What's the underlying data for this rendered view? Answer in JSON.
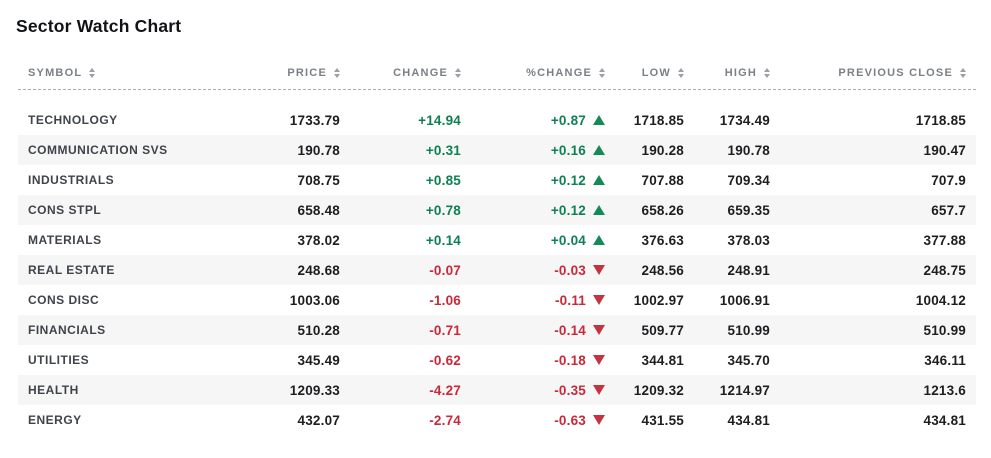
{
  "title": "Sector Watch Chart",
  "colors": {
    "positive_text": "#0e8054",
    "positive_triangle": "#148a58",
    "negative_text": "#c8293a",
    "negative_triangle": "#c43440",
    "header_text": "#7c8085",
    "alt_row_bg": "#f6f6f7",
    "number_text": "#1d1e20",
    "symbol_text": "#3f444b"
  },
  "table": {
    "columns": [
      "SYMBOL",
      "PRICE",
      "CHANGE",
      "%CHANGE",
      "LOW",
      "HIGH",
      "PREVIOUS CLOSE"
    ],
    "rows": [
      {
        "symbol": "TECHNOLOGY",
        "price": "1733.79",
        "change": "+14.94",
        "pct_change": "+0.87",
        "direction": "up",
        "low": "1718.85",
        "high": "1734.49",
        "previous_close": "1718.85"
      },
      {
        "symbol": "COMMUNICATION SVS",
        "price": "190.78",
        "change": "+0.31",
        "pct_change": "+0.16",
        "direction": "up",
        "low": "190.28",
        "high": "190.78",
        "previous_close": "190.47"
      },
      {
        "symbol": "INDUSTRIALS",
        "price": "708.75",
        "change": "+0.85",
        "pct_change": "+0.12",
        "direction": "up",
        "low": "707.88",
        "high": "709.34",
        "previous_close": "707.9"
      },
      {
        "symbol": "CONS STPL",
        "price": "658.48",
        "change": "+0.78",
        "pct_change": "+0.12",
        "direction": "up",
        "low": "658.26",
        "high": "659.35",
        "previous_close": "657.7"
      },
      {
        "symbol": "MATERIALS",
        "price": "378.02",
        "change": "+0.14",
        "pct_change": "+0.04",
        "direction": "up",
        "low": "376.63",
        "high": "378.03",
        "previous_close": "377.88"
      },
      {
        "symbol": "REAL ESTATE",
        "price": "248.68",
        "change": "-0.07",
        "pct_change": "-0.03",
        "direction": "down",
        "low": "248.56",
        "high": "248.91",
        "previous_close": "248.75"
      },
      {
        "symbol": "CONS DISC",
        "price": "1003.06",
        "change": "-1.06",
        "pct_change": "-0.11",
        "direction": "down",
        "low": "1002.97",
        "high": "1006.91",
        "previous_close": "1004.12"
      },
      {
        "symbol": "FINANCIALS",
        "price": "510.28",
        "change": "-0.71",
        "pct_change": "-0.14",
        "direction": "down",
        "low": "509.77",
        "high": "510.99",
        "previous_close": "510.99"
      },
      {
        "symbol": "UTILITIES",
        "price": "345.49",
        "change": "-0.62",
        "pct_change": "-0.18",
        "direction": "down",
        "low": "344.81",
        "high": "345.70",
        "previous_close": "346.11"
      },
      {
        "symbol": "HEALTH",
        "price": "1209.33",
        "change": "-4.27",
        "pct_change": "-0.35",
        "direction": "down",
        "low": "1209.32",
        "high": "1214.97",
        "previous_close": "1213.6"
      },
      {
        "symbol": "ENERGY",
        "price": "432.07",
        "change": "-2.74",
        "pct_change": "-0.63",
        "direction": "down",
        "low": "431.55",
        "high": "434.81",
        "previous_close": "434.81"
      }
    ]
  }
}
